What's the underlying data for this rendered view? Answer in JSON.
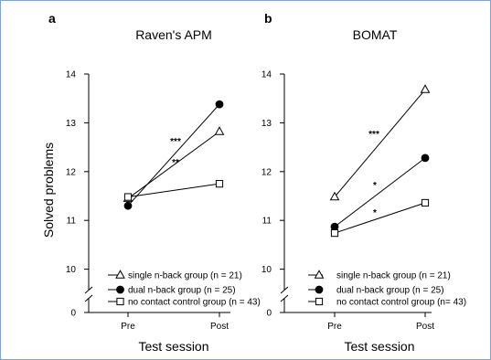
{
  "chart_data": [
    {
      "type": "line",
      "panel": "a",
      "title": "Raven's APM",
      "xlabel": "Test session",
      "ylabel": "Solved problems",
      "categories": [
        "Pre",
        "Post"
      ],
      "ylim": [
        0,
        14
      ],
      "y_ticks": [
        0,
        10,
        11,
        12,
        13,
        14
      ],
      "axis_break": true,
      "legend_position": "bottom",
      "series": [
        {
          "name": "single n-back group (n = 21)",
          "marker": "open-triangle",
          "values": [
            11.45,
            12.82
          ],
          "significance": "**"
        },
        {
          "name": "dual n-back group (n = 25)",
          "marker": "filled-circle",
          "values": [
            11.3,
            13.38
          ],
          "significance": "***"
        },
        {
          "name": "no contact control group (n = 43)",
          "marker": "open-square",
          "values": [
            11.48,
            11.75
          ],
          "significance": ""
        }
      ]
    },
    {
      "type": "line",
      "panel": "b",
      "title": "BOMAT",
      "xlabel": "Test session",
      "ylabel": "",
      "categories": [
        "Pre",
        "Post"
      ],
      "ylim": [
        0,
        14
      ],
      "y_ticks": [
        0,
        10,
        11,
        12,
        13,
        14
      ],
      "axis_break": true,
      "legend_position": "bottom",
      "series": [
        {
          "name": "single n-back group (n = 21)",
          "marker": "open-triangle",
          "values": [
            11.48,
            13.68
          ],
          "significance": "***"
        },
        {
          "name": "dual n-back group (n = 25)",
          "marker": "filled-circle",
          "values": [
            10.87,
            12.28
          ],
          "significance": "*"
        },
        {
          "name": "no contact control group (n= 43)",
          "marker": "open-square",
          "values": [
            10.74,
            11.36
          ],
          "significance": "*"
        }
      ]
    }
  ]
}
